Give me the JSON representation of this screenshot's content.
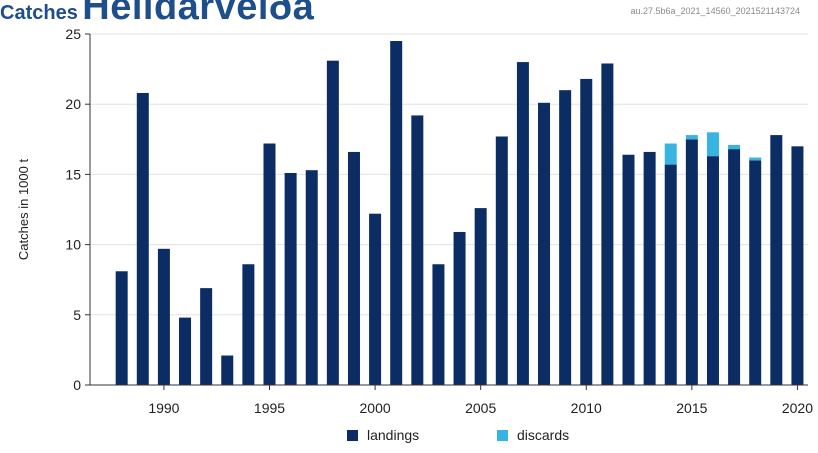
{
  "header": {
    "prefix": "Catches",
    "title": "Heildarveiða",
    "ref_code": "au.27.5b6a_2021_14560_2021521143724"
  },
  "colors": {
    "landings": "#0c2d63",
    "discards": "#38b4e3",
    "grid": "#e3e3e3",
    "axis": "#333333"
  },
  "chart_data": {
    "type": "bar",
    "stacked": true,
    "x": [
      1988,
      1989,
      1990,
      1991,
      1992,
      1993,
      1994,
      1995,
      1996,
      1997,
      1998,
      1999,
      2000,
      2001,
      2002,
      2003,
      2004,
      2005,
      2006,
      2007,
      2008,
      2009,
      2010,
      2011,
      2012,
      2013,
      2014,
      2015,
      2016,
      2017,
      2018,
      2019,
      2020
    ],
    "series": [
      {
        "name": "landings",
        "values": [
          8.1,
          20.8,
          9.7,
          4.8,
          6.9,
          2.1,
          8.6,
          17.2,
          15.1,
          15.3,
          23.1,
          16.6,
          12.2,
          24.5,
          19.2,
          8.6,
          10.9,
          12.6,
          17.7,
          23.0,
          20.1,
          21.0,
          21.8,
          22.9,
          16.4,
          16.6,
          15.7,
          17.5,
          16.3,
          16.8,
          16.0,
          17.8,
          17.0
        ]
      },
      {
        "name": "discards",
        "values": [
          0,
          0,
          0,
          0,
          0,
          0,
          0,
          0,
          0,
          0,
          0,
          0,
          0,
          0,
          0,
          0,
          0,
          0,
          0,
          0,
          0,
          0,
          0,
          0,
          0,
          0,
          1.5,
          0.3,
          1.7,
          0.3,
          0.2,
          0,
          0
        ]
      }
    ],
    "x_ticks": [
      1990,
      1995,
      2000,
      2005,
      2010,
      2015,
      2020
    ],
    "y_ticks": [
      0,
      5,
      10,
      15,
      20,
      25
    ],
    "ylabel": "Catches in 1000 t",
    "xlabel": "",
    "xlim": [
      1986.5,
      2020.5
    ],
    "ylim": [
      0,
      25
    ],
    "grid": "horizontal",
    "legend_position": "bottom"
  }
}
